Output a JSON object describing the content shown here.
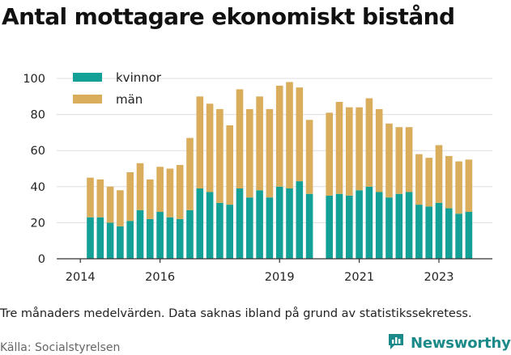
{
  "title": "Antal mottagare ekonomiskt bistånd",
  "footnote": "Tre månaders medelvärden. Data saknas ibland på grund av statistikssekretess.",
  "source": "Källa: Socialstyrelsen",
  "brand": {
    "name": "Newsworthy",
    "icon": "newsworthy-logo-icon",
    "color": "#1d8a8a"
  },
  "colors": {
    "kvinnor": "#13a096",
    "man": "#d9ad5c",
    "grid": "#dddddd",
    "axis": "#333333"
  },
  "chart_data": {
    "type": "bar",
    "stacked": true,
    "ylim": [
      0,
      100
    ],
    "yticks": [
      0,
      20,
      40,
      60,
      80,
      100
    ],
    "xticks": [
      "2014",
      "2016",
      "2019",
      "2021",
      "2023"
    ],
    "grid": true,
    "legend_position": "top-left",
    "x": [
      "2014-Q2",
      "2014-Q3",
      "2014-Q4",
      "2015-Q1",
      "2015-Q2",
      "2015-Q3",
      "2015-Q4",
      "2016-Q1",
      "2016-Q2",
      "2016-Q3",
      "2016-Q4",
      "2017-Q1",
      "2017-Q2",
      "2017-Q3",
      "2017-Q4",
      "2018-Q1",
      "2018-Q2",
      "2018-Q3",
      "2018-Q4",
      "2019-Q1",
      "2019-Q2",
      "2019-Q3",
      "2019-Q4",
      "2020-Q1",
      "2020-Q2",
      "2020-Q3",
      "2020-Q4",
      "2021-Q1",
      "2021-Q2",
      "2021-Q3",
      "2021-Q4",
      "2022-Q1",
      "2022-Q2",
      "2022-Q3",
      "2022-Q4",
      "2023-Q1",
      "2023-Q2",
      "2023-Q3",
      "2023-Q4",
      "2024-Q1"
    ],
    "series": [
      {
        "name": "kvinnor",
        "color": "#13a096",
        "values": [
          23,
          23,
          20,
          18,
          21,
          27,
          22,
          26,
          23,
          22,
          27,
          39,
          37,
          31,
          30,
          39,
          34,
          38,
          34,
          40,
          39,
          43,
          36,
          null,
          35,
          36,
          35,
          38,
          40,
          37,
          34,
          36,
          37,
          30,
          29,
          31,
          28,
          25,
          26,
          null
        ]
      },
      {
        "name": "män",
        "color": "#d9ad5c",
        "values": [
          22,
          21,
          20,
          20,
          27,
          26,
          22,
          25,
          27,
          30,
          40,
          51,
          49,
          52,
          44,
          55,
          49,
          52,
          49,
          56,
          59,
          52,
          41,
          null,
          46,
          51,
          49,
          46,
          49,
          46,
          41,
          37,
          36,
          28,
          27,
          32,
          29,
          29,
          29,
          null
        ]
      }
    ]
  }
}
